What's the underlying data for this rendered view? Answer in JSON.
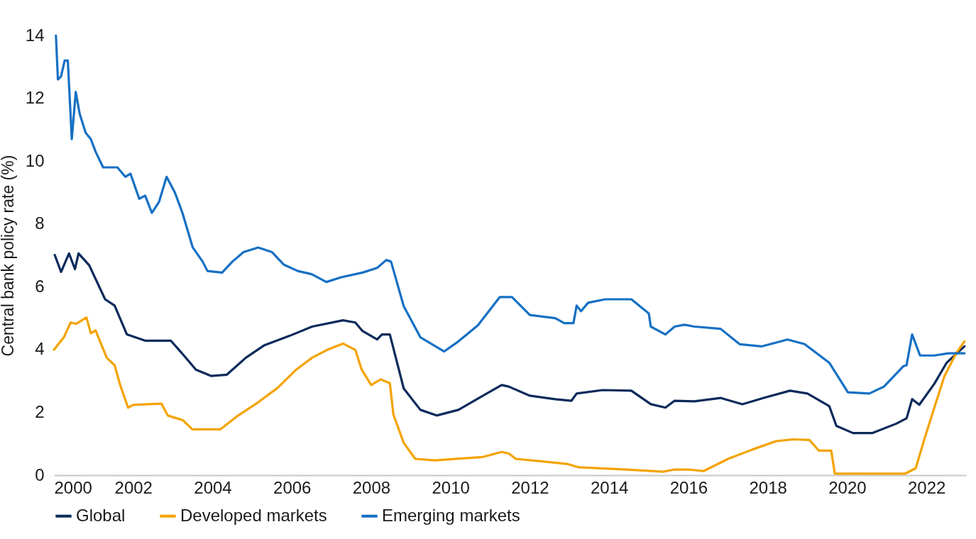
{
  "chart_data": {
    "type": "line",
    "ylabel": "Central bank policy rate (%)",
    "xlim": [
      2000,
      2023
    ],
    "xticks": [
      2000,
      2002,
      2004,
      2006,
      2008,
      2010,
      2012,
      2014,
      2016,
      2018,
      2020,
      2022
    ],
    "ylim": [
      0,
      14
    ],
    "yticks": [
      0,
      2,
      4,
      6,
      8,
      10,
      12,
      14
    ],
    "legend": "bottom",
    "series": [
      {
        "name": "Global",
        "color": "#0b2a5b",
        "x": [
          2000.02,
          2000.18,
          2000.38,
          2000.53,
          2000.62,
          2000.89,
          2001.29,
          2001.53,
          2001.84,
          2002.31,
          2002.71,
          2002.95,
          2003.25,
          2003.58,
          2003.96,
          2004.36,
          2004.84,
          2005.31,
          2005.95,
          2006.51,
          2007.29,
          2007.6,
          2007.78,
          2008.15,
          2008.27,
          2008.47,
          2008.82,
          2009.24,
          2009.65,
          2010.2,
          2010.82,
          2011.29,
          2011.47,
          2012.0,
          2012.64,
          2013.05,
          2013.18,
          2013.84,
          2014.56,
          2015.05,
          2015.42,
          2015.65,
          2016.15,
          2016.81,
          2017.36,
          2017.9,
          2018.56,
          2019.0,
          2019.55,
          2019.73,
          2020.15,
          2020.63,
          2021.24,
          2021.5,
          2021.64,
          2021.82,
          2022.2,
          2022.51,
          2022.96
        ],
        "values": [
          7.01,
          6.47,
          7.06,
          6.56,
          7.06,
          6.68,
          5.6,
          5.4,
          4.48,
          4.28,
          4.28,
          4.28,
          3.85,
          3.36,
          3.16,
          3.2,
          3.74,
          4.14,
          4.44,
          4.73,
          4.93,
          4.86,
          4.59,
          4.32,
          4.48,
          4.48,
          2.76,
          2.08,
          1.9,
          2.08,
          2.53,
          2.87,
          2.82,
          2.53,
          2.42,
          2.37,
          2.6,
          2.71,
          2.69,
          2.26,
          2.15,
          2.37,
          2.35,
          2.46,
          2.26,
          2.46,
          2.69,
          2.6,
          2.2,
          1.57,
          1.34,
          1.34,
          1.64,
          1.81,
          2.42,
          2.24,
          2.91,
          3.58,
          4.1
        ]
      },
      {
        "name": "Developed markets",
        "color": "#f4a300",
        "x": [
          2000.0,
          2000.25,
          2000.42,
          2000.56,
          2000.82,
          2000.93,
          2001.05,
          2001.33,
          2001.53,
          2001.67,
          2001.87,
          2002.0,
          2002.71,
          2002.87,
          2003.25,
          2003.49,
          2004.2,
          2004.6,
          2005.16,
          2005.64,
          2006.11,
          2006.51,
          2006.89,
          2007.29,
          2007.6,
          2007.76,
          2008.0,
          2008.24,
          2008.47,
          2008.56,
          2008.82,
          2009.11,
          2009.6,
          2010.82,
          2011.29,
          2011.47,
          2011.65,
          2012.93,
          2013.24,
          2014.45,
          2015.36,
          2015.65,
          2016.0,
          2016.38,
          2017.0,
          2017.6,
          2018.2,
          2018.64,
          2019.05,
          2019.29,
          2019.6,
          2019.69,
          2021.47,
          2021.73,
          2021.96,
          2022.2,
          2022.45,
          2022.75,
          2022.96
        ],
        "values": [
          3.99,
          4.39,
          4.86,
          4.82,
          5.02,
          4.52,
          4.61,
          3.74,
          3.5,
          2.87,
          2.15,
          2.24,
          2.28,
          1.9,
          1.75,
          1.46,
          1.46,
          1.86,
          2.33,
          2.78,
          3.36,
          3.74,
          3.99,
          4.19,
          3.99,
          3.36,
          2.87,
          3.05,
          2.93,
          1.93,
          1.03,
          0.52,
          0.47,
          0.58,
          0.74,
          0.69,
          0.52,
          0.36,
          0.25,
          0.18,
          0.11,
          0.18,
          0.18,
          0.13,
          0.52,
          0.81,
          1.08,
          1.14,
          1.12,
          0.78,
          0.78,
          0.05,
          0.05,
          0.22,
          1.19,
          2.15,
          3.14,
          3.88,
          4.26
        ]
      },
      {
        "name": "Emerging markets",
        "color": "#1670c4",
        "x": [
          2000.05,
          2000.1,
          2000.18,
          2000.27,
          2000.35,
          2000.45,
          2000.55,
          2000.65,
          2000.8,
          2000.93,
          2001.05,
          2001.24,
          2001.6,
          2001.8,
          2001.93,
          2002.15,
          2002.3,
          2002.47,
          2002.65,
          2002.84,
          2003.05,
          2003.24,
          2003.5,
          2003.75,
          2003.87,
          2004.24,
          2004.5,
          2004.78,
          2005.15,
          2005.5,
          2005.8,
          2006.15,
          2006.5,
          2006.87,
          2007.24,
          2007.78,
          2008.15,
          2008.38,
          2008.5,
          2008.82,
          2009.24,
          2009.84,
          2010.2,
          2010.69,
          2011.24,
          2011.55,
          2012.0,
          2012.64,
          2012.87,
          2013.1,
          2013.18,
          2013.29,
          2013.47,
          2013.9,
          2014.56,
          2015.0,
          2015.05,
          2015.42,
          2015.65,
          2015.9,
          2016.15,
          2016.81,
          2017.29,
          2017.84,
          2018.5,
          2018.93,
          2019.55,
          2020.02,
          2020.56,
          2020.93,
          2021.42,
          2021.5,
          2021.64,
          2021.84,
          2022.2,
          2022.56,
          2022.96
        ],
        "values": [
          14,
          12.6,
          12.7,
          13.2,
          13.2,
          10.7,
          12.2,
          11.5,
          10.9,
          10.7,
          10.3,
          9.8,
          9.8,
          9.5,
          9.6,
          8.8,
          8.9,
          8.35,
          8.7,
          9.5,
          9.0,
          8.35,
          7.25,
          6.8,
          6.5,
          6.45,
          6.8,
          7.1,
          7.25,
          7.1,
          6.7,
          6.5,
          6.4,
          6.15,
          6.3,
          6.45,
          6.6,
          6.85,
          6.8,
          5.38,
          4.39,
          3.94,
          4.26,
          4.77,
          5.67,
          5.67,
          5.1,
          5.0,
          4.84,
          4.84,
          5.4,
          5.22,
          5.49,
          5.6,
          5.6,
          5.15,
          4.73,
          4.48,
          4.73,
          4.79,
          4.73,
          4.66,
          4.17,
          4.1,
          4.32,
          4.17,
          3.58,
          2.64,
          2.6,
          2.82,
          3.47,
          3.5,
          4.48,
          3.81,
          3.81,
          3.88,
          3.88
        ]
      }
    ]
  }
}
